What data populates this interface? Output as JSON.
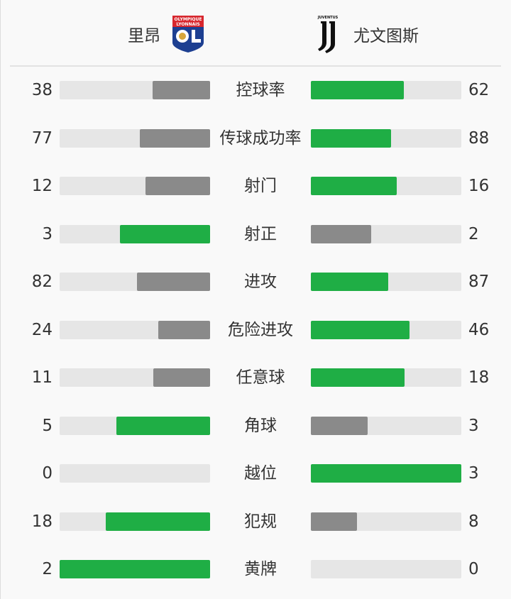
{
  "header": {
    "home_team": "里昂",
    "away_team": "尤文图斯",
    "home_logo": {
      "icon": "olympique-lyonnais-crest",
      "text": "OLYMPIQUE LYONNAIS"
    },
    "away_logo": {
      "icon": "juventus-logo",
      "text": "JUVENTUS"
    }
  },
  "colors": {
    "leader": "#1fae45",
    "trailer": "#8a8a8a",
    "track": "#e6e6e6"
  },
  "stats": [
    {
      "label": "控球率",
      "home": "38",
      "away": "62"
    },
    {
      "label": "传球成功率",
      "home": "77",
      "away": "88"
    },
    {
      "label": "射门",
      "home": "12",
      "away": "16"
    },
    {
      "label": "射正",
      "home": "3",
      "away": "2"
    },
    {
      "label": "进攻",
      "home": "82",
      "away": "87"
    },
    {
      "label": "危险进攻",
      "home": "24",
      "away": "46"
    },
    {
      "label": "任意球",
      "home": "11",
      "away": "18"
    },
    {
      "label": "角球",
      "home": "5",
      "away": "3"
    },
    {
      "label": "越位",
      "home": "0",
      "away": "3"
    },
    {
      "label": "犯规",
      "home": "18",
      "away": "8"
    },
    {
      "label": "黄牌",
      "home": "2",
      "away": "0"
    }
  ]
}
